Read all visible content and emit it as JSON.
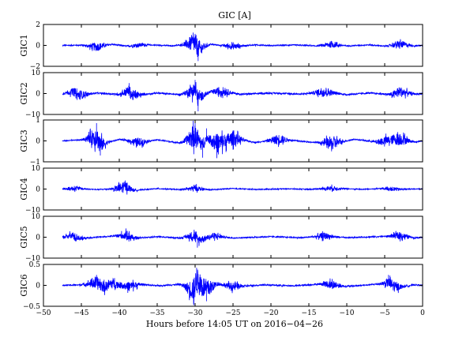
{
  "chart_data": {
    "type": "line",
    "title": "GIC [A]",
    "xlabel": "Hours before  14:05 UT on 2016−04−26",
    "xlim": [
      -50,
      0
    ],
    "xticks": [
      -50,
      -45,
      -40,
      -35,
      -30,
      -25,
      -20,
      -15,
      -10,
      -5,
      0
    ],
    "xtick_labels": [
      "−50",
      "−45",
      "−40",
      "−35",
      "−30",
      "−25",
      "−20",
      "−15",
      "−10",
      "−5",
      "0"
    ],
    "grid": false,
    "line_color": "#0000ff",
    "series": [
      {
        "name": "GIC1",
        "ylabel": "GIC1",
        "ylim": [
          -2,
          2
        ],
        "yticks": [
          2,
          0,
          -2
        ],
        "ytick_labels": [
          "2",
          "0",
          "−2"
        ],
        "bursts": [
          [
            -43,
            0.6
          ],
          [
            -37.5,
            0.25
          ],
          [
            -30,
            1.5
          ],
          [
            -25,
            0.4
          ],
          [
            -12,
            0.45
          ],
          [
            -3,
            0.5
          ]
        ],
        "base_noise": 0.08,
        "x": [
          -47.5,
          -45,
          -43,
          -41,
          -39,
          -37,
          -35,
          -33,
          -31,
          -30,
          -29.6,
          -28,
          -25,
          -22,
          -20,
          -17,
          -14,
          -12,
          -10,
          -7,
          -5,
          -3,
          -1,
          0
        ],
        "y": [
          0,
          0.1,
          -0.6,
          0.4,
          -0.3,
          0.2,
          0.1,
          -0.2,
          0.5,
          1.1,
          -1.5,
          0.4,
          -0.4,
          0.2,
          -0.1,
          0.15,
          -0.2,
          0.4,
          -0.2,
          0.2,
          -0.3,
          0.5,
          -0.2,
          0
        ]
      },
      {
        "name": "GIC2",
        "ylabel": "GIC2",
        "ylim": [
          -10,
          10
        ],
        "yticks": [
          10,
          0,
          -10
        ],
        "ytick_labels": [
          "10",
          "0",
          "−10"
        ],
        "bursts": [
          [
            -45.5,
            3.5
          ],
          [
            -38.5,
            4
          ],
          [
            -30,
            5.5
          ],
          [
            -26.5,
            3
          ],
          [
            -13,
            3.5
          ],
          [
            -3,
            3.5
          ]
        ],
        "base_noise": 0.6,
        "x": [
          -47.5,
          -46,
          -45.5,
          -43,
          -40,
          -38.7,
          -38.3,
          -35,
          -32,
          -30,
          -29.6,
          -28,
          -26.5,
          -24,
          -20,
          -16,
          -13,
          -10,
          -7,
          -4,
          -3,
          -1,
          0
        ],
        "y": [
          0,
          3.5,
          -3.5,
          0.8,
          -1.5,
          5,
          -4,
          1,
          -2,
          6.5,
          -8.5,
          3,
          4.5,
          -1.5,
          1,
          -1,
          3.5,
          -2,
          1,
          -2,
          3.5,
          -1,
          0
        ]
      },
      {
        "name": "GIC3",
        "ylabel": "GIC3",
        "ylim": [
          -1,
          1
        ],
        "yticks": [
          1,
          0,
          -1
        ],
        "ytick_labels": [
          "1",
          "0",
          "−1"
        ],
        "bursts": [
          [
            -43,
            0.75
          ],
          [
            -37.5,
            0.3
          ],
          [
            -30,
            0.85
          ],
          [
            -27,
            0.7
          ],
          [
            -25,
            0.5
          ],
          [
            -19,
            0.35
          ],
          [
            -12,
            0.5
          ],
          [
            -5,
            0.3
          ],
          [
            -3,
            0.45
          ]
        ],
        "base_noise": 0.04,
        "x": [
          -47.5,
          -45,
          -43,
          -42.5,
          -40,
          -37.5,
          -35,
          -32,
          -30,
          -29,
          -28.5,
          -27,
          -25,
          -22,
          -19,
          -15,
          -12,
          -9,
          -6,
          -3,
          -1,
          0
        ],
        "y": [
          0,
          0.2,
          0.85,
          -0.7,
          0.3,
          -0.3,
          0.2,
          -0.4,
          0.9,
          -0.8,
          0.6,
          -0.5,
          0.5,
          -0.3,
          0.35,
          -0.2,
          -0.5,
          0.3,
          -0.2,
          0.4,
          -0.2,
          0
        ]
      },
      {
        "name": "GIC4",
        "ylabel": "GIC4",
        "ylim": [
          -10,
          10
        ],
        "yticks": [
          10,
          0,
          -10
        ],
        "ytick_labels": [
          "10",
          "0",
          "−10"
        ],
        "bursts": [
          [
            -46,
            1.5
          ],
          [
            -39.5,
            4
          ],
          [
            -30,
            1.8
          ],
          [
            -12,
            1.5
          ],
          [
            -4,
            1.3
          ]
        ],
        "base_noise": 0.35,
        "x": [
          -47.5,
          -46,
          -43,
          -40,
          -39.2,
          -38,
          -35,
          -32,
          -30,
          -28,
          -25,
          -22,
          -18,
          -15,
          -12,
          -8,
          -5,
          -3,
          -1,
          0
        ],
        "y": [
          0,
          1.5,
          -1,
          1,
          4.5,
          -2.5,
          0.8,
          -1,
          1.5,
          -1.5,
          1,
          -0.8,
          0.5,
          -0.5,
          1.5,
          -0.5,
          1,
          -0.5,
          0.3,
          0
        ]
      },
      {
        "name": "GIC5",
        "ylabel": "GIC5",
        "ylim": [
          -10,
          10
        ],
        "yticks": [
          10,
          0,
          -10
        ],
        "ytick_labels": [
          "10",
          "0",
          "−10"
        ],
        "bursts": [
          [
            -46,
            2.5
          ],
          [
            -39,
            3
          ],
          [
            -30,
            3.5
          ],
          [
            -27.5,
            2
          ],
          [
            -13,
            2.2
          ],
          [
            -3,
            2.5
          ]
        ],
        "base_noise": 0.45,
        "x": [
          -47.5,
          -46.2,
          -45,
          -42,
          -39,
          -38,
          -35,
          -32,
          -30,
          -29.7,
          -27.5,
          -25,
          -20,
          -16,
          -13,
          -10,
          -6,
          -3,
          -1,
          0
        ],
        "y": [
          0,
          2.8,
          -2.5,
          1,
          3.5,
          -2,
          1,
          -1.5,
          4,
          -5,
          2.5,
          -1.5,
          1,
          -1,
          2.5,
          -1,
          1,
          3,
          -1,
          0
        ]
      },
      {
        "name": "GIC6",
        "ylabel": "GIC6",
        "ylim": [
          -0.5,
          0.5
        ],
        "yticks": [
          0.5,
          0,
          -0.5
        ],
        "ytick_labels": [
          "0.5",
          "0",
          "−0.5"
        ],
        "bursts": [
          [
            -43,
            0.22
          ],
          [
            -41,
            0.18
          ],
          [
            -38.5,
            0.15
          ],
          [
            -30,
            0.42
          ],
          [
            -28.5,
            0.3
          ],
          [
            -25,
            0.14
          ],
          [
            -12,
            0.15
          ],
          [
            -4,
            0.2
          ]
        ],
        "base_noise": 0.025,
        "x": [
          -47.5,
          -45,
          -43,
          -42,
          -41,
          -39,
          -37,
          -35,
          -32,
          -30.2,
          -29.8,
          -28.5,
          -27,
          -25,
          -21,
          -17,
          -13,
          -10,
          -7,
          -4.5,
          -3.5,
          -1,
          0
        ],
        "y": [
          0,
          0.05,
          0.25,
          -0.2,
          0.2,
          -0.1,
          0.1,
          -0.05,
          0.1,
          -0.45,
          0.42,
          -0.38,
          0.15,
          -0.15,
          0.05,
          -0.05,
          0.15,
          -0.1,
          0.05,
          0.25,
          -0.2,
          0.05,
          0
        ]
      }
    ]
  }
}
